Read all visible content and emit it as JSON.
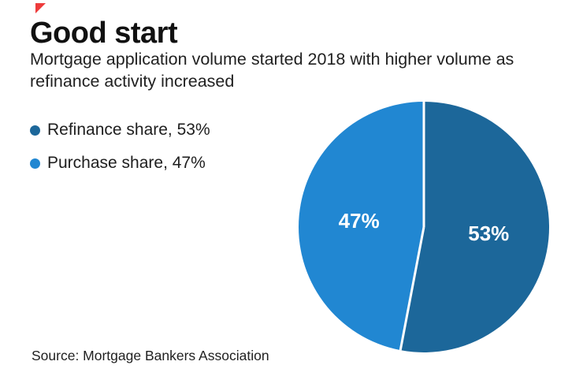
{
  "page": {
    "background": "#ffffff",
    "corner_mark_color": "#ee3b3b",
    "text_color": "#111111"
  },
  "header": {
    "title": "Good start",
    "subtitle": "Mortgage application volume started 2018 with higher volume as refinance activity increased"
  },
  "legend": {
    "items": [
      {
        "label": "Refinance share, 53%",
        "color": "#1c679a"
      },
      {
        "label": "Purchase share, 47%",
        "color": "#2187d2"
      }
    ]
  },
  "chart_data": {
    "type": "pie",
    "title": "Good start",
    "subtitle": "Mortgage application volume started 2018 with higher volume as refinance activity increased",
    "categories": [
      "Refinance share",
      "Purchase share"
    ],
    "values": [
      53,
      47
    ],
    "slice_labels": [
      "53%",
      "47%"
    ],
    "colors": [
      "#1c679a",
      "#2187d2"
    ],
    "start_angle_deg": 0,
    "direction": "clockwise",
    "slice_label_color": "#ffffff",
    "divider_color": "#ffffff",
    "legend_position": "left",
    "source": "Source: Mortgage Bankers Association"
  },
  "footer": {
    "source": "Source: Mortgage Bankers Association"
  }
}
